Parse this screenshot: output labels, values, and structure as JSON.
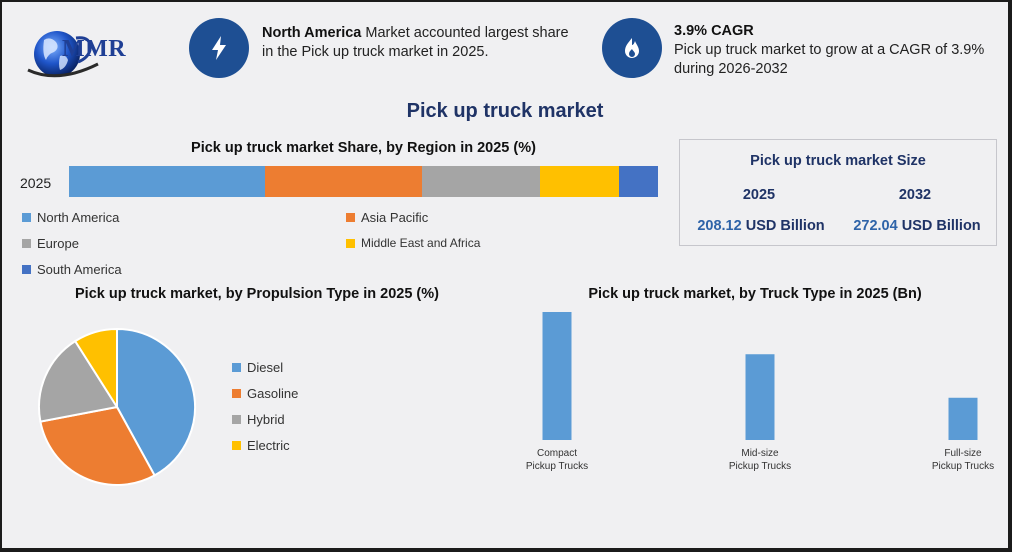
{
  "header": {
    "logo_text": "MMR",
    "highlight1": {
      "bold": "North America",
      "text": " Market accounted largest share in the Pick up truck market in 2025.",
      "icon": "lightning-icon"
    },
    "highlight2": {
      "bold": "3.9% CAGR",
      "text": "Pick up truck market to grow at a CAGR of 3.9% during 2026-2032",
      "icon": "flame-icon"
    },
    "title": "Pick up truck market"
  },
  "market_size": {
    "title": "Pick up truck market Size",
    "year1": "2025",
    "year2": "2032",
    "value1": "208.12",
    "value2": "272.04",
    "unit": " USD Billion"
  },
  "colors": {
    "blue": "#5b9bd5",
    "orange": "#ed7d31",
    "gray": "#a5a5a5",
    "yellow": "#ffc000",
    "dark_blue": "#4472c4",
    "title_navy": "#1f3366",
    "circle": "#1e4f93"
  },
  "chart_data": [
    {
      "type": "bar",
      "stacked": true,
      "orientation": "horizontal",
      "title": "Pick up truck market Share, by Region in 2025 (%)",
      "categories": [
        "2025"
      ],
      "series": [
        {
          "name": "North America",
          "values": [
            33.3
          ],
          "color": "#5b9bd5"
        },
        {
          "name": "Asia Pacific",
          "values": [
            26.7
          ],
          "color": "#ed7d31"
        },
        {
          "name": "Europe",
          "values": [
            19.9
          ],
          "color": "#a5a5a5"
        },
        {
          "name": "Middle East and Africa",
          "values": [
            13.5
          ],
          "color": "#ffc000"
        },
        {
          "name": "South America",
          "values": [
            6.6
          ],
          "color": "#4472c4"
        }
      ],
      "legend": "bottom"
    },
    {
      "type": "pie",
      "title": "Pick up truck market, by Propulsion Type in 2025 (%)",
      "slices": [
        {
          "label": "Diesel",
          "value": 42,
          "color": "#5b9bd5"
        },
        {
          "label": "Gasoline",
          "value": 30,
          "color": "#ed7d31"
        },
        {
          "label": "Hybrid",
          "value": 19,
          "color": "#a5a5a5"
        },
        {
          "label": "Electric",
          "value": 9,
          "color": "#ffc000"
        }
      ],
      "start_angle_deg": -90,
      "legend": "right"
    },
    {
      "type": "bar",
      "title": "Pick up truck market, by Truck Type in 2025 (Bn)",
      "categories": [
        [
          "Compact",
          "Pickup Trucks"
        ],
        [
          "Mid-size",
          "Pickup Trucks"
        ],
        [
          "Full-size",
          "Pickup Trucks"
        ]
      ],
      "values": [
        100,
        67,
        33
      ],
      "ylim": [
        0,
        100
      ],
      "color": "#5b9bd5"
    }
  ]
}
